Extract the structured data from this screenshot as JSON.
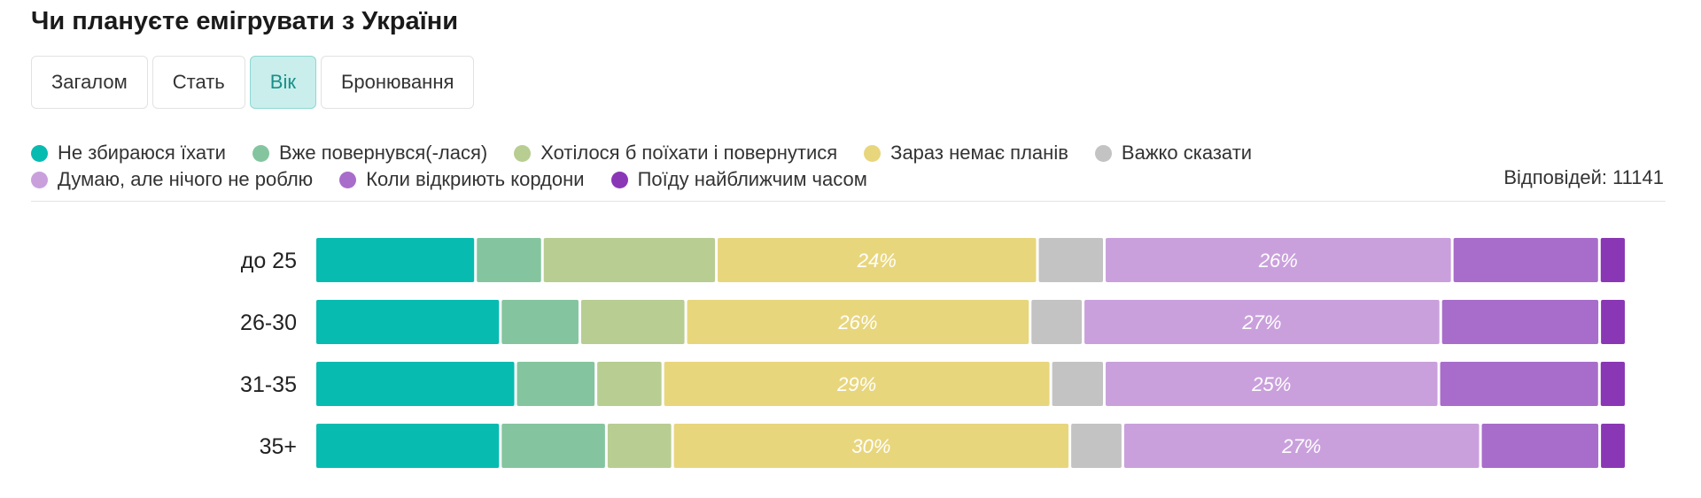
{
  "title": "Чи плануєте емігрувати з України",
  "tabs": [
    {
      "label": "Загалом",
      "active": false
    },
    {
      "label": "Стать",
      "active": false
    },
    {
      "label": "Вік",
      "active": true
    },
    {
      "label": "Бронювання",
      "active": false
    }
  ],
  "responses_label": "Відповідей: 11141",
  "chart_data": {
    "type": "bar",
    "orientation": "horizontal",
    "stacked": true,
    "normalized_percent": true,
    "categories": [
      "до 25",
      "26-30",
      "31-35",
      "35+"
    ],
    "series": [
      {
        "name": "Не збираюся їхати",
        "color": "#08bbb1",
        "values": [
          12,
          14,
          15,
          14
        ]
      },
      {
        "name": "Вже повернувся(-лася)",
        "color": "#84c59f",
        "values": [
          5,
          6,
          6,
          8
        ]
      },
      {
        "name": "Хотілося б поїхати і повернутися",
        "color": "#b8cd92",
        "values": [
          13,
          8,
          5,
          5
        ]
      },
      {
        "name": "Зараз немає планів",
        "color": "#e8d67d",
        "values": [
          24,
          26,
          29,
          30
        ]
      },
      {
        "name": "Важко сказати",
        "color": "#c3c3c3",
        "values": [
          5,
          4,
          4,
          4
        ]
      },
      {
        "name": "Думаю, але нічого не роблю",
        "color": "#c9a0dc",
        "values": [
          26,
          27,
          25,
          27
        ]
      },
      {
        "name": "Коли відкриють кордони",
        "color": "#a86dcb",
        "values": [
          11,
          12,
          12,
          9
        ]
      },
      {
        "name": "Поїду найближчим часом",
        "color": "#8a37b5",
        "values": [
          2,
          2,
          2,
          2
        ]
      }
    ],
    "data_labels": [
      {
        "series": 3,
        "category": 0,
        "text": "24%"
      },
      {
        "series": 5,
        "category": 0,
        "text": "26%"
      },
      {
        "series": 3,
        "category": 1,
        "text": "26%"
      },
      {
        "series": 5,
        "category": 1,
        "text": "27%"
      },
      {
        "series": 3,
        "category": 2,
        "text": "29%"
      },
      {
        "series": 5,
        "category": 2,
        "text": "25%"
      },
      {
        "series": 3,
        "category": 3,
        "text": "30%"
      },
      {
        "series": 5,
        "category": 3,
        "text": "27%"
      }
    ],
    "legend_position": "top"
  }
}
